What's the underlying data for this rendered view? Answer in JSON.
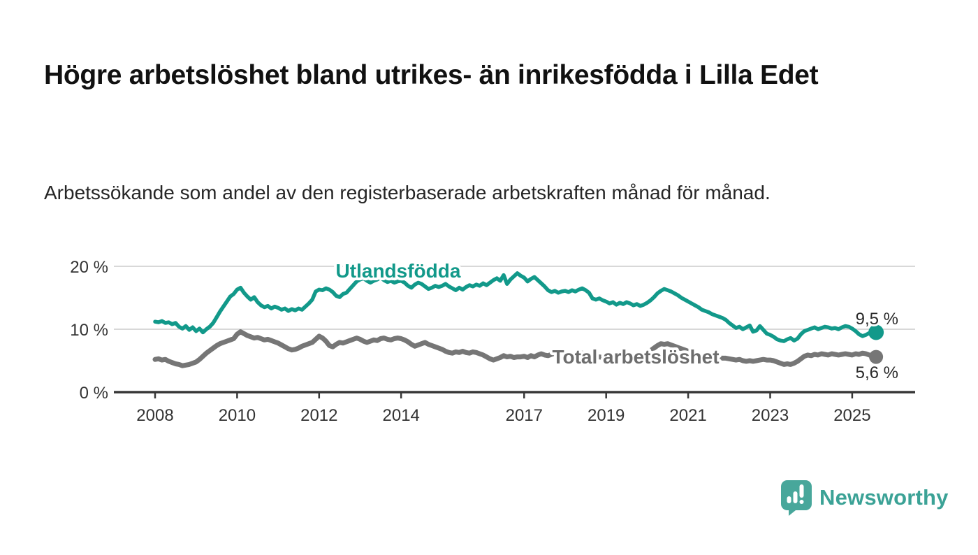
{
  "title": "Högre arbetslöshet bland utrikes- än inrikesfödda i Lilla Edet",
  "subtitle": "Arbetssökande som andel av den registerbaserade arbetskraften månad för månad.",
  "branding": {
    "name": "Newsworthy",
    "icon": "newsworthy-speech-bubble-chart-icon",
    "color": "#3ba296"
  },
  "colors": {
    "foreign_born_line": "#12998a",
    "total_line": "#767676",
    "total_label": "#6d6d6d",
    "grid": "#d8d8d8",
    "axis": "#383838"
  },
  "chart_data": {
    "type": "line",
    "title": "Högre arbetslöshet bland utrikes- än inrikesfödda i Lilla Edet",
    "subtitle": "Arbetssökande som andel av den registerbaserade arbetskraften månad för månad.",
    "frequency": "monthly",
    "x_start": "2008-01",
    "x_end": "2025-08",
    "x_tick_labels": [
      "2008",
      "2010",
      "2012",
      "2014",
      "2017",
      "2019",
      "2021",
      "2023",
      "2025"
    ],
    "y_tick_labels": [
      "20 %",
      "10 %",
      "0 %"
    ],
    "ylabel": "",
    "xlabel": "",
    "ylim": [
      0,
      22
    ],
    "grid": "horizontal",
    "legend_position": "inline-labels",
    "series": [
      {
        "name": "Utlandsfödda",
        "color": "#12998a",
        "end_label": "9,5 %",
        "end_value": 9.5,
        "values": [
          11.2,
          11.1,
          11.3,
          11.0,
          11.1,
          10.8,
          11.0,
          10.4,
          10.1,
          10.5,
          9.9,
          10.3,
          9.7,
          10.1,
          9.5,
          10.0,
          10.4,
          11.0,
          11.9,
          12.8,
          13.6,
          14.4,
          15.2,
          15.6,
          16.3,
          16.6,
          15.8,
          15.2,
          14.7,
          15.1,
          14.3,
          13.8,
          13.5,
          13.7,
          13.3,
          13.6,
          13.4,
          13.1,
          13.3,
          12.9,
          13.2,
          13.0,
          13.3,
          13.1,
          13.6,
          14.1,
          14.7,
          16.0,
          16.3,
          16.2,
          16.5,
          16.3,
          15.9,
          15.3,
          15.1,
          15.6,
          15.8,
          16.4,
          17.0,
          17.6,
          17.9,
          18.1,
          17.7,
          17.4,
          17.7,
          17.9,
          18.2,
          17.8,
          17.5,
          17.7,
          17.4,
          17.6,
          17.7,
          17.4,
          16.9,
          16.6,
          17.1,
          17.4,
          17.2,
          16.8,
          16.4,
          16.6,
          16.9,
          16.7,
          16.9,
          17.2,
          16.8,
          16.5,
          16.2,
          16.6,
          16.3,
          16.7,
          17.0,
          16.8,
          17.1,
          16.9,
          17.3,
          17.0,
          17.4,
          17.8,
          18.1,
          17.7,
          18.6,
          17.2,
          17.9,
          18.4,
          18.9,
          18.5,
          18.2,
          17.6,
          18.0,
          18.3,
          17.8,
          17.3,
          16.8,
          16.2,
          15.9,
          16.1,
          15.8,
          16.0,
          16.1,
          15.9,
          16.2,
          16.0,
          16.3,
          16.5,
          16.2,
          15.8,
          14.9,
          14.7,
          14.9,
          14.6,
          14.4,
          14.1,
          14.3,
          13.9,
          14.2,
          14.0,
          14.3,
          14.1,
          13.8,
          14.0,
          13.7,
          13.9,
          14.2,
          14.6,
          15.1,
          15.7,
          16.1,
          16.4,
          16.2,
          16.0,
          15.7,
          15.4,
          15.0,
          14.7,
          14.4,
          14.1,
          13.8,
          13.5,
          13.1,
          12.9,
          12.7,
          12.4,
          12.2,
          12.0,
          11.8,
          11.5,
          11.0,
          10.6,
          10.2,
          10.4,
          10.0,
          10.3,
          10.6,
          9.6,
          9.8,
          10.5,
          9.9,
          9.3,
          9.1,
          8.8,
          8.4,
          8.2,
          8.1,
          8.4,
          8.6,
          8.2,
          8.5,
          9.2,
          9.7,
          9.9,
          10.1,
          10.3,
          10.0,
          10.2,
          10.4,
          10.3,
          10.1,
          10.2,
          10.0,
          10.3,
          10.5,
          10.4,
          10.1,
          9.7,
          9.2,
          8.9,
          9.1,
          9.4,
          9.6,
          9.5
        ]
      },
      {
        "name": "Total arbetslöshet",
        "color": "#767676",
        "end_label": "5,6 %",
        "end_value": 5.6,
        "values": [
          5.2,
          5.3,
          5.1,
          5.2,
          4.9,
          4.7,
          4.5,
          4.4,
          4.2,
          4.3,
          4.4,
          4.6,
          4.8,
          5.2,
          5.7,
          6.2,
          6.6,
          7.0,
          7.4,
          7.7,
          7.9,
          8.1,
          8.3,
          8.5,
          9.2,
          9.6,
          9.3,
          9.0,
          8.8,
          8.6,
          8.7,
          8.5,
          8.3,
          8.4,
          8.2,
          8.0,
          7.8,
          7.5,
          7.2,
          6.9,
          6.7,
          6.8,
          7.0,
          7.3,
          7.5,
          7.7,
          7.9,
          8.4,
          8.9,
          8.6,
          8.1,
          7.4,
          7.2,
          7.6,
          7.9,
          7.8,
          8.0,
          8.2,
          8.4,
          8.6,
          8.4,
          8.1,
          7.9,
          8.1,
          8.3,
          8.2,
          8.5,
          8.6,
          8.4,
          8.3,
          8.5,
          8.6,
          8.5,
          8.3,
          8.0,
          7.6,
          7.3,
          7.5,
          7.7,
          7.9,
          7.6,
          7.4,
          7.2,
          7.0,
          6.8,
          6.5,
          6.3,
          6.2,
          6.4,
          6.3,
          6.5,
          6.3,
          6.2,
          6.4,
          6.3,
          6.1,
          5.9,
          5.6,
          5.3,
          5.1,
          5.3,
          5.5,
          5.8,
          5.6,
          5.7,
          5.5,
          5.6,
          5.6,
          5.7,
          5.5,
          5.8,
          5.6,
          5.9,
          6.1,
          5.9,
          5.8,
          6.0,
          6.2,
          6.1,
          6.3,
          6.2,
          6.0,
          6.1,
          5.9,
          6.0,
          6.2,
          6.0,
          5.8,
          5.6,
          5.5,
          5.6,
          5.5,
          5.4,
          5.5,
          5.3,
          5.4,
          5.6,
          5.5,
          5.7,
          5.6,
          5.5,
          5.6,
          5.8,
          6.0,
          6.3,
          6.6,
          7.0,
          7.4,
          7.7,
          7.6,
          7.7,
          7.5,
          7.3,
          7.1,
          6.9,
          6.7,
          6.5,
          6.3,
          6.1,
          6.0,
          5.9,
          5.8,
          5.9,
          5.7,
          5.6,
          5.5,
          5.4,
          5.4,
          5.3,
          5.2,
          5.1,
          5.2,
          5.0,
          4.9,
          5.0,
          4.9,
          5.0,
          5.1,
          5.2,
          5.1,
          5.1,
          5.0,
          4.8,
          4.6,
          4.4,
          4.5,
          4.4,
          4.6,
          4.9,
          5.3,
          5.7,
          5.9,
          5.8,
          6.0,
          5.9,
          6.1,
          6.0,
          5.9,
          6.1,
          6.0,
          5.9,
          6.0,
          6.1,
          6.0,
          5.9,
          6.1,
          6.0,
          6.2,
          6.1,
          5.9,
          5.8,
          5.6
        ]
      }
    ]
  }
}
